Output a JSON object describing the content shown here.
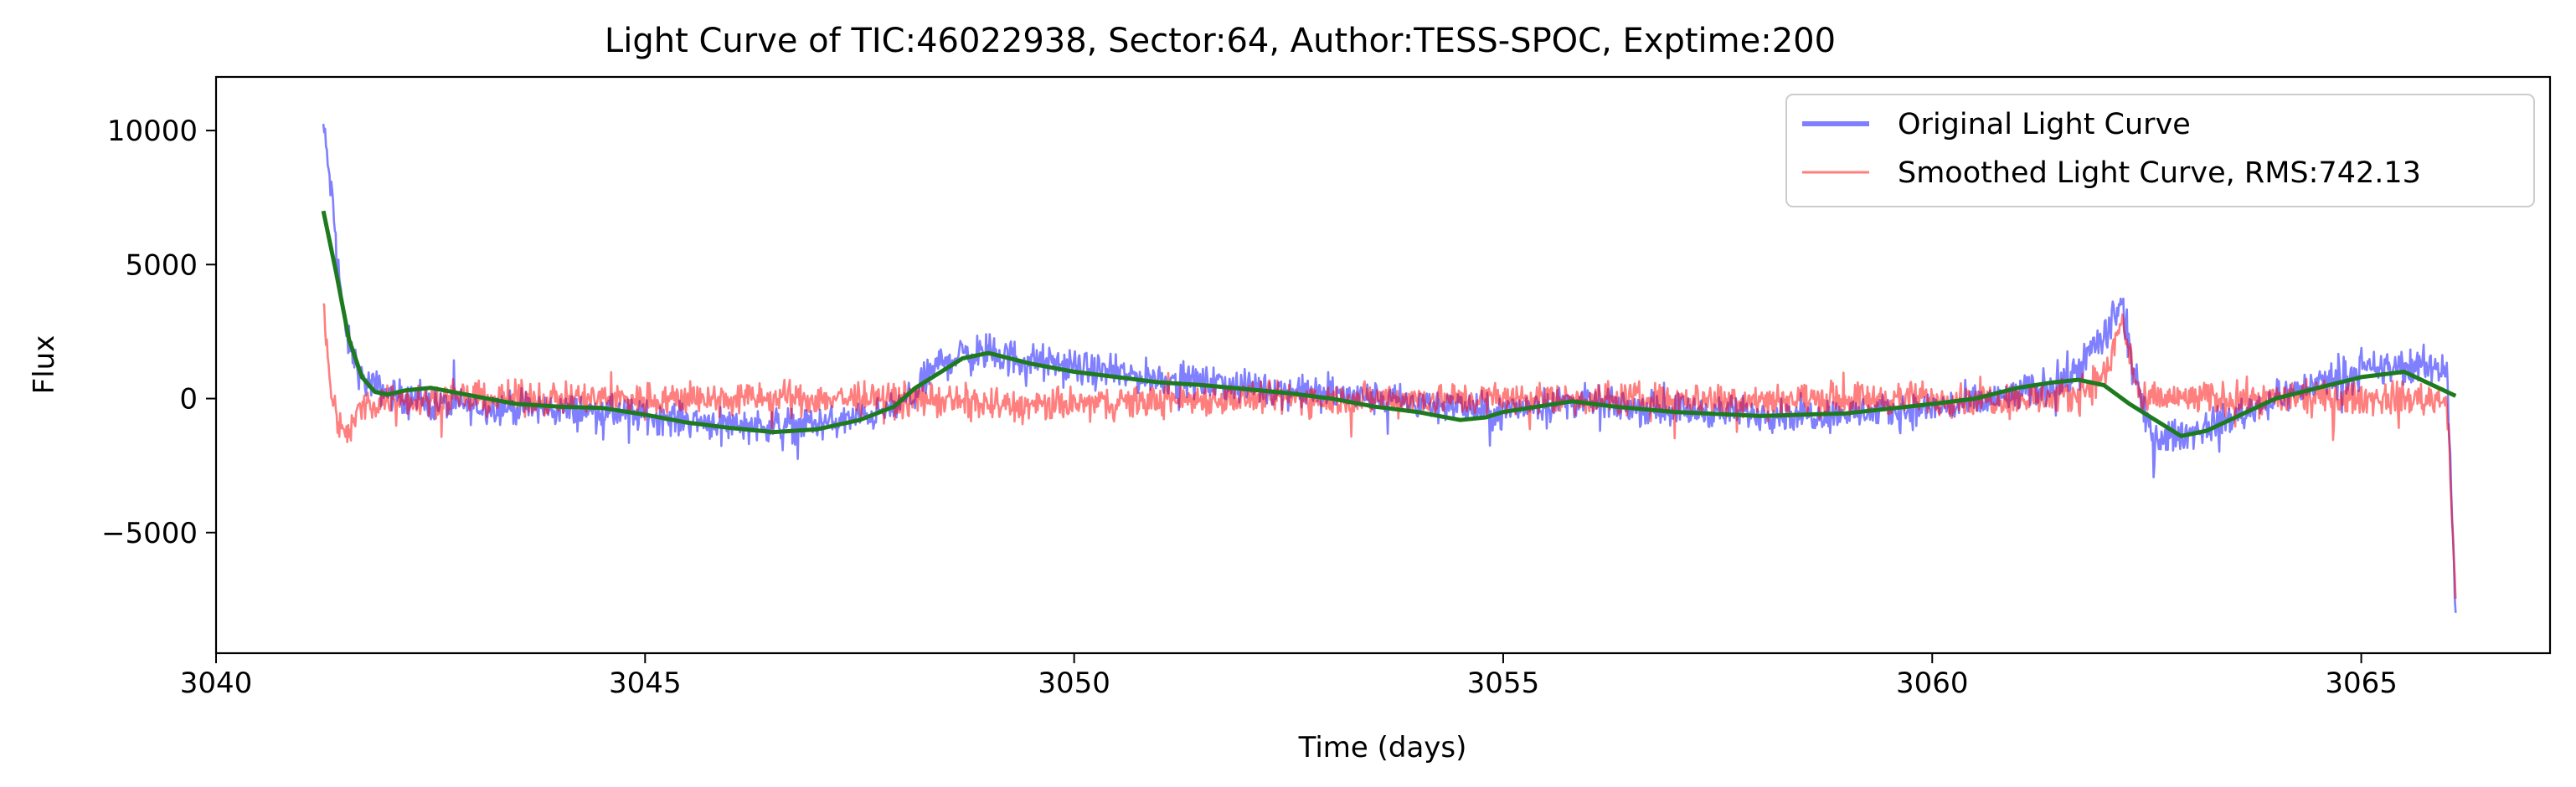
{
  "chart_data": {
    "type": "line",
    "title": "Light Curve of TIC:46022938, Sector:64, Author:TESS-SPOC, Exptime:200",
    "xlabel": "Time (days)",
    "ylabel": "Flux",
    "xlim": [
      3040,
      3067.2
    ],
    "ylim": [
      -9500,
      12000
    ],
    "x_ticks": [
      3040,
      3045,
      3050,
      3055,
      3060,
      3065
    ],
    "x_tick_labels": [
      "3040",
      "3045",
      "3050",
      "3055",
      "3060",
      "3065"
    ],
    "y_ticks": [
      -5000,
      0,
      5000,
      10000
    ],
    "y_tick_labels": [
      "−5000",
      "0",
      "5000",
      "10000"
    ],
    "grid": false,
    "legend_position": "top-right",
    "series": [
      {
        "name": "Original Light Curve",
        "color": "#0000ff",
        "opacity": 0.5,
        "style": "noisy",
        "x": [
          3041.25,
          3041.35,
          3041.5,
          3041.7,
          3042.0,
          3042.5,
          3043.5,
          3044.5,
          3045.5,
          3046.3,
          3047.2,
          3047.8,
          3048.1,
          3048.25,
          3048.5,
          3048.9,
          3049.5,
          3050.5,
          3051.5,
          3052.5,
          3053.5,
          3054.5,
          3054.95,
          3055.2,
          3055.8,
          3056.5,
          3057.5,
          3058.5,
          3059.5,
          3060.5,
          3061.2,
          3061.6,
          3062.05,
          3062.2,
          3062.45,
          3062.6,
          3063.0,
          3063.5,
          3064.0,
          3064.5,
          3065.0,
          3065.5,
          3066.0,
          3066.1
        ],
        "y": [
          10200,
          7500,
          2500,
          700,
          200,
          -200,
          -350,
          -500,
          -800,
          -1000,
          -900,
          -500,
          0,
          700,
          1500,
          1700,
          1400,
          900,
          600,
          300,
          0,
          -300,
          -600,
          -300,
          -100,
          -300,
          -500,
          -600,
          -500,
          -200,
          300,
          800,
          2500,
          3500,
          -500,
          -1500,
          -1300,
          -700,
          0,
          600,
          1000,
          1200,
          1200,
          -8200
        ],
        "noise": [
          800,
          900,
          900,
          900,
          900,
          900,
          900,
          900,
          900,
          900,
          900,
          800,
          900,
          1000,
          1100,
          1100,
          1000,
          900,
          900,
          900,
          900,
          900,
          1000,
          900,
          900,
          900,
          900,
          900,
          900,
          1000,
          1000,
          1100,
          1200,
          1200,
          1000,
          900,
          900,
          900,
          900,
          900,
          1000,
          1000,
          1000,
          500
        ]
      },
      {
        "name": "Smoothed Light Curve, RMS:742.13",
        "color": "#ff0000",
        "opacity": 0.5,
        "style": "noisy",
        "x": [
          3041.25,
          3041.35,
          3041.5,
          3041.7,
          3042.0,
          3042.5,
          3043.5,
          3044.5,
          3045.5,
          3046.3,
          3047.2,
          3047.8,
          3048.1,
          3048.25,
          3048.5,
          3048.9,
          3049.5,
          3050.5,
          3051.5,
          3052.5,
          3053.5,
          3054.5,
          3054.95,
          3055.2,
          3055.8,
          3056.5,
          3057.5,
          3058.5,
          3059.5,
          3060.5,
          3061.2,
          3061.6,
          3062.05,
          3062.2,
          3062.45,
          3062.6,
          3063.0,
          3063.5,
          3064.0,
          3064.5,
          3065.0,
          3065.5,
          3066.0,
          3066.1
        ],
        "y": [
          3500,
          0,
          -1500,
          -300,
          0,
          0,
          0,
          0,
          0,
          0,
          0,
          0,
          0,
          0,
          -100,
          -200,
          -300,
          -150,
          0,
          0,
          0,
          0,
          0,
          0,
          0,
          0,
          0,
          0,
          0,
          0,
          0,
          0,
          1000,
          3000,
          -300,
          0,
          0,
          0,
          0,
          0,
          0,
          0,
          0,
          -7500
        ],
        "noise": [
          700,
          800,
          900,
          900,
          900,
          900,
          900,
          900,
          900,
          900,
          900,
          900,
          900,
          900,
          1000,
          1000,
          900,
          900,
          900,
          900,
          900,
          900,
          900,
          900,
          900,
          900,
          900,
          900,
          900,
          900,
          1000,
          1000,
          1000,
          1000,
          900,
          900,
          900,
          900,
          900,
          900,
          900,
          900,
          900,
          400
        ]
      },
      {
        "name": "",
        "color": "#1e7a1e",
        "opacity": 1,
        "style": "smooth",
        "x": [
          3041.25,
          3041.4,
          3041.55,
          3041.7,
          3041.85,
          3042.0,
          3042.2,
          3042.5,
          3043.0,
          3043.5,
          3044.0,
          3044.5,
          3045.0,
          3045.5,
          3046.0,
          3046.5,
          3047.0,
          3047.5,
          3047.9,
          3048.15,
          3048.4,
          3048.7,
          3049.0,
          3049.5,
          3050.0,
          3050.5,
          3051.0,
          3051.5,
          3052.0,
          3052.5,
          3053.0,
          3053.5,
          3054.0,
          3054.5,
          3054.8,
          3055.0,
          3055.3,
          3055.8,
          3056.3,
          3057.0,
          3058.0,
          3059.0,
          3060.0,
          3060.5,
          3061.0,
          3061.4,
          3061.7,
          3062.0,
          3062.3,
          3062.6,
          3062.9,
          3063.2,
          3063.6,
          3064.0,
          3064.5,
          3065.0,
          3065.5,
          3066.1
        ],
        "y": [
          7000,
          4700,
          2200,
          800,
          250,
          150,
          300,
          400,
          100,
          -200,
          -300,
          -350,
          -600,
          -900,
          -1100,
          -1250,
          -1150,
          -800,
          -300,
          400,
          900,
          1500,
          1700,
          1300,
          1000,
          800,
          600,
          500,
          350,
          200,
          0,
          -300,
          -500,
          -800,
          -700,
          -500,
          -350,
          -100,
          -300,
          -500,
          -650,
          -550,
          -200,
          0,
          400,
          600,
          700,
          500,
          -200,
          -800,
          -1400,
          -1200,
          -600,
          0,
          400,
          800,
          1000,
          100
        ]
      }
    ]
  }
}
